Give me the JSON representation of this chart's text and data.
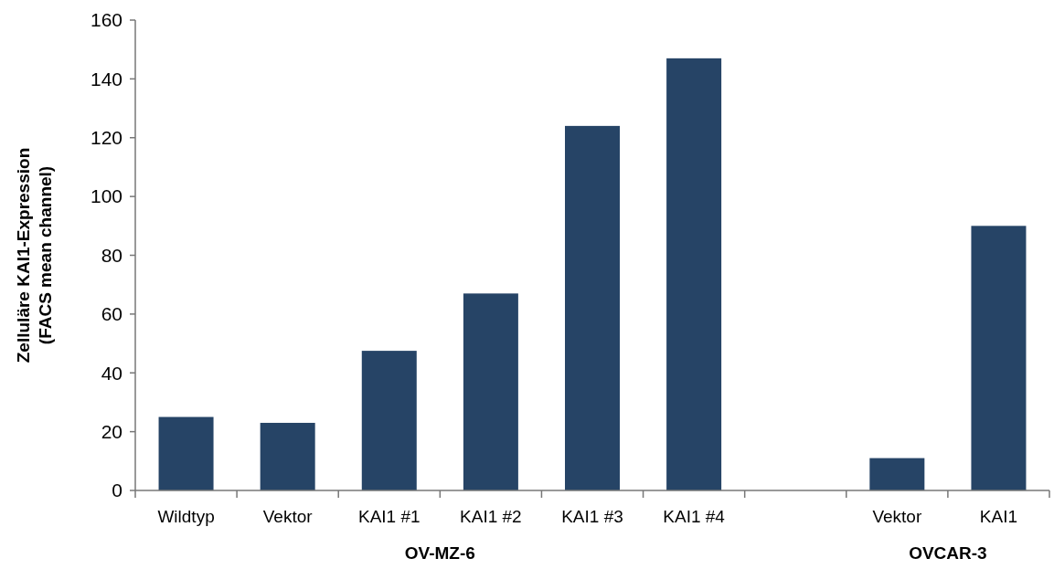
{
  "chart_data": {
    "type": "bar",
    "ylabel": "Zelluläre KAI1-Expression (FACS mean channel)",
    "categories": [
      "Wildtyp",
      "Vektor",
      "KAI1 #1",
      "KAI1 #2",
      "KAI1 #3",
      "KAI1 #4",
      null,
      "Vektor",
      "KAI1"
    ],
    "values": [
      25,
      23,
      47.5,
      67,
      124,
      147,
      null,
      11,
      90
    ],
    "color": "#264466",
    "ylim": [
      0,
      160
    ],
    "yticks": [
      0,
      20,
      40,
      60,
      80,
      100,
      120,
      140,
      160
    ],
    "annotations": [
      "OV-MZ-6",
      "OVCAR-3"
    ]
  }
}
